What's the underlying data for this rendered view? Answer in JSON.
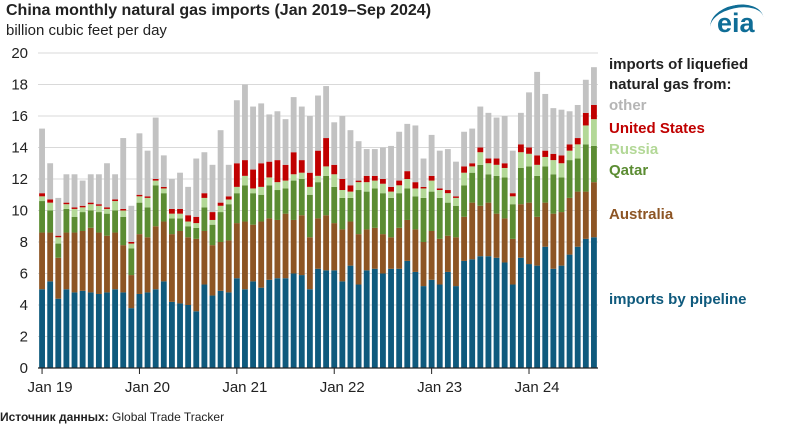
{
  "title": "China monthly natural gas imports (Jan 2019–Sep 2024)",
  "subtitle": "billion cubic feet per day",
  "logo_text": "eia",
  "source_label": "Источник данных:",
  "source_value": "Global Trade Tracker",
  "legend_heading": "imports of liquefied natural gas from:",
  "chart_data": {
    "type": "bar",
    "stacked": true,
    "title": "China monthly natural gas imports (Jan 2019–Sep 2024)",
    "ylabel": "billion cubic feet per day",
    "ylim": [
      0,
      20
    ],
    "yticks": [
      0,
      2,
      4,
      6,
      8,
      10,
      12,
      14,
      16,
      18,
      20
    ],
    "xtick_labels": [
      "Jan 19",
      "Jan 20",
      "Jan 21",
      "Jan 22",
      "Jan 23",
      "Jan 24"
    ],
    "xtick_month_index": [
      0,
      12,
      24,
      36,
      48,
      60
    ],
    "grid": "horizontal",
    "legend_placement": "right",
    "start_month": "2019-01",
    "months": 69,
    "series": [
      {
        "name": "imports by pipeline",
        "color": "#0f5a7d",
        "values": [
          5.0,
          5.5,
          4.4,
          5.0,
          4.8,
          4.9,
          4.8,
          4.7,
          4.8,
          5.0,
          4.8,
          3.8,
          4.7,
          4.8,
          5.0,
          5.5,
          4.2,
          4.1,
          4.0,
          3.6,
          5.3,
          4.6,
          4.9,
          4.8,
          5.7,
          5.0,
          5.5,
          5.1,
          5.6,
          5.7,
          5.7,
          6.0,
          5.9,
          5.0,
          6.3,
          6.2,
          6.2,
          5.5,
          6.5,
          5.3,
          6.2,
          6.3,
          6.0,
          6.3,
          6.3,
          6.8,
          6.1,
          5.2,
          5.6,
          5.3,
          6.1,
          5.2,
          6.8,
          6.9,
          7.1,
          7.1,
          7.0,
          6.7,
          5.3,
          7.0,
          6.6,
          6.5,
          7.7,
          6.3,
          6.5,
          7.2,
          7.7,
          8.2,
          8.3
        ]
      },
      {
        "name": "Australia",
        "color": "#8d5524",
        "values": [
          3.6,
          3.1,
          2.6,
          3.6,
          3.8,
          3.8,
          4.1,
          3.9,
          3.6,
          3.6,
          3.0,
          2.1,
          3.8,
          3.5,
          4.0,
          3.8,
          4.3,
          4.6,
          4.3,
          4.6,
          3.4,
          3.2,
          3.1,
          3.3,
          3.5,
          4.3,
          3.6,
          4.2,
          3.9,
          3.7,
          4.1,
          3.4,
          3.8,
          3.3,
          3.2,
          3.5,
          3.0,
          3.3,
          2.8,
          3.2,
          2.6,
          2.6,
          2.5,
          2.0,
          2.6,
          2.6,
          2.7,
          2.8,
          3.1,
          2.9,
          2.3,
          3.1,
          2.8,
          3.6,
          3.2,
          3.4,
          2.8,
          2.8,
          2.9,
          3.4,
          3.9,
          3.1,
          2.8,
          3.5,
          3.4,
          3.6,
          3.5,
          3.0,
          3.5
        ]
      },
      {
        "name": "Qatar",
        "color": "#5b8c32",
        "values": [
          2.0,
          1.4,
          0.9,
          1.5,
          1.0,
          1.2,
          1.1,
          1.3,
          1.4,
          1.4,
          1.8,
          1.7,
          2.0,
          1.9,
          2.6,
          1.8,
          1.0,
          0.8,
          0.7,
          0.7,
          1.5,
          1.3,
          1.9,
          2.3,
          1.9,
          2.3,
          2.0,
          1.7,
          2.1,
          1.9,
          1.6,
          2.5,
          2.3,
          2.7,
          2.3,
          2.5,
          2.3,
          2.0,
          1.5,
          2.8,
          2.4,
          2.5,
          2.6,
          2.5,
          2.2,
          2.0,
          2.1,
          2.8,
          2.5,
          2.6,
          2.1,
          2.0,
          2.0,
          1.9,
          2.6,
          1.8,
          2.4,
          2.6,
          2.2,
          2.3,
          2.3,
          2.6,
          2.3,
          2.5,
          2.2,
          2.4,
          2.1,
          3.0,
          2.3
        ]
      },
      {
        "name": "Russia",
        "color": "#b3d897",
        "values": [
          0.3,
          0.5,
          0.4,
          0.3,
          0.5,
          0.3,
          0.4,
          0.4,
          0.3,
          0.6,
          0.4,
          0.3,
          0.4,
          0.6,
          0.3,
          0.3,
          0.3,
          0.3,
          0.3,
          0.3,
          0.6,
          0.3,
          0.4,
          0.3,
          0.4,
          0.6,
          0.3,
          0.5,
          0.5,
          0.5,
          0.5,
          0.4,
          0.4,
          0.5,
          0.4,
          0.6,
          0.8,
          0.5,
          0.4,
          0.5,
          0.6,
          0.5,
          0.6,
          0.4,
          0.5,
          0.6,
          0.5,
          0.6,
          0.7,
          0.5,
          0.6,
          0.5,
          0.8,
          0.4,
          0.8,
          0.7,
          0.7,
          0.6,
          0.5,
          1.0,
          0.8,
          0.7,
          0.6,
          0.9,
          0.9,
          0.6,
          0.9,
          1.2,
          1.7
        ]
      },
      {
        "name": "United States",
        "color": "#c00000",
        "values": [
          0.2,
          0.2,
          0.1,
          0.1,
          0.1,
          0.1,
          0.1,
          0.1,
          0.1,
          0.1,
          0.1,
          0.1,
          0.1,
          0.1,
          0.1,
          0.1,
          0.3,
          0.3,
          0.4,
          0.4,
          0.3,
          0.5,
          0.2,
          0.2,
          1.5,
          1.0,
          1.2,
          1.5,
          1.0,
          1.4,
          1.0,
          1.4,
          0.8,
          0.9,
          1.6,
          1.8,
          0.6,
          0.7,
          0.4,
          0.1,
          0.4,
          0.3,
          0.3,
          0.3,
          0.3,
          0.5,
          0.4,
          0.1,
          0.3,
          0.1,
          0.2,
          0.1,
          0.4,
          0.2,
          0.3,
          0.3,
          0.4,
          0.3,
          0.2,
          0.5,
          0.4,
          0.6,
          0.4,
          0.4,
          0.5,
          0.4,
          0.4,
          0.8,
          0.9
        ]
      },
      {
        "name": "other",
        "color": "#c2c2c2",
        "values": [
          4.1,
          2.3,
          2.4,
          1.8,
          2.1,
          1.6,
          1.8,
          1.9,
          2.8,
          1.6,
          4.5,
          2.3,
          3.9,
          2.9,
          3.9,
          2.0,
          1.9,
          2.3,
          1.8,
          3.7,
          2.6,
          3.0,
          4.6,
          2.0,
          4.0,
          4.8,
          4.0,
          3.8,
          3.0,
          3.1,
          2.9,
          3.5,
          3.4,
          3.6,
          3.5,
          3.3,
          2.7,
          4.0,
          3.5,
          2.5,
          1.7,
          1.7,
          2.0,
          2.6,
          3.1,
          3.0,
          3.6,
          1.8,
          2.6,
          2.4,
          2.6,
          2.2,
          2.2,
          2.2,
          2.6,
          2.9,
          2.6,
          3.0,
          2.7,
          2.0,
          3.5,
          5.3,
          3.6,
          2.9,
          2.9,
          2.1,
          2.1,
          2.1,
          2.4
        ]
      }
    ]
  }
}
